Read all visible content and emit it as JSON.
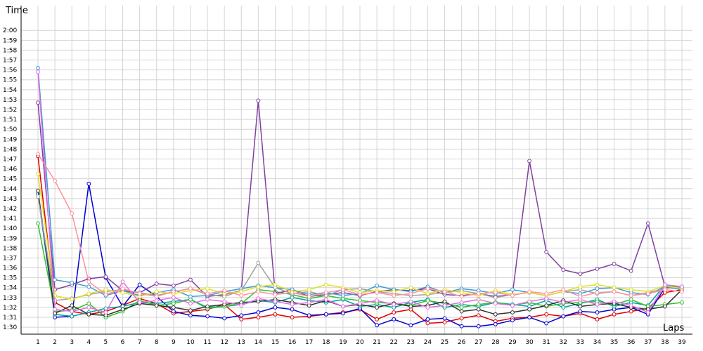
{
  "chart_data": {
    "type": "line",
    "title": "",
    "xlabel": "Laps",
    "ylabel": "Time",
    "x": [
      1,
      2,
      3,
      4,
      5,
      6,
      7,
      8,
      9,
      10,
      11,
      12,
      13,
      14,
      15,
      16,
      17,
      18,
      19,
      20,
      21,
      22,
      23,
      24,
      25,
      26,
      27,
      28,
      29,
      30,
      31,
      32,
      33,
      34,
      35,
      36,
      37,
      38,
      39
    ],
    "xlim": [
      1,
      39
    ],
    "ylim": [
      89.3,
      122.5
    ],
    "y_ticks": [
      {
        "v": 90,
        "label": "1:30"
      },
      {
        "v": 91,
        "label": "1:31"
      },
      {
        "v": 92,
        "label": "1:32"
      },
      {
        "v": 93,
        "label": "1:33"
      },
      {
        "v": 94,
        "label": "1:34"
      },
      {
        "v": 95,
        "label": "1:35"
      },
      {
        "v": 96,
        "label": "1:36"
      },
      {
        "v": 97,
        "label": "1:37"
      },
      {
        "v": 98,
        "label": "1:38"
      },
      {
        "v": 99,
        "label": "1:39"
      },
      {
        "v": 100,
        "label": "1:40"
      },
      {
        "v": 101,
        "label": "1:41"
      },
      {
        "v": 102,
        "label": "1:42"
      },
      {
        "v": 103,
        "label": "1:43"
      },
      {
        "v": 104,
        "label": "1:44"
      },
      {
        "v": 105,
        "label": "1:45"
      },
      {
        "v": 106,
        "label": "1:46"
      },
      {
        "v": 107,
        "label": "1:47"
      },
      {
        "v": 108,
        "label": "1:48"
      },
      {
        "v": 109,
        "label": "1:49"
      },
      {
        "v": 110,
        "label": "1:50"
      },
      {
        "v": 111,
        "label": "1:51"
      },
      {
        "v": 112,
        "label": "1:52"
      },
      {
        "v": 113,
        "label": "1:53"
      },
      {
        "v": 114,
        "label": "1:54"
      },
      {
        "v": 115,
        "label": "1:55"
      },
      {
        "v": 116,
        "label": "1:56"
      },
      {
        "v": 117,
        "label": "1:57"
      },
      {
        "v": 118,
        "label": "1:58"
      },
      {
        "v": 119,
        "label": "1:59"
      },
      {
        "v": 120,
        "label": "2:00"
      }
    ],
    "x_tick_labels": [
      "1",
      "2",
      "3",
      "4",
      "5",
      "6",
      "7",
      "8",
      "9",
      "10",
      "11",
      "12",
      "13",
      "14",
      "15",
      "16",
      "17",
      "18",
      "19",
      "20",
      "21",
      "22",
      "23",
      "24",
      "25",
      "26",
      "27",
      "28",
      "29",
      "30",
      "31",
      "32",
      "33",
      "34",
      "35",
      "36",
      "37",
      "38",
      "39"
    ],
    "grid": true,
    "legend": "none",
    "series": [
      {
        "color": "#e00000",
        "values": [
          107.3,
          92.5,
          91.6,
          91.3,
          91.6,
          92.2,
          92.9,
          92.4,
          91.4,
          91.6,
          91.8,
          92.3,
          90.8,
          91.0,
          91.3,
          91.0,
          91.1,
          91.3,
          91.5,
          91.8,
          90.8,
          91.5,
          91.8,
          90.4,
          90.5,
          90.9,
          91.2,
          90.6,
          90.9,
          91.0,
          91.3,
          91.1,
          91.4,
          90.8,
          91.3,
          91.6,
          91.9,
          93.5,
          93.8
        ]
      },
      {
        "color": "#0000d0",
        "values": [
          103.5,
          91.0,
          91.1,
          104.5,
          95.0,
          92.1,
          94.3,
          93.1,
          91.6,
          91.2,
          91.1,
          90.9,
          91.2,
          91.5,
          92.0,
          91.8,
          91.2,
          91.3,
          91.4,
          91.9,
          90.2,
          90.8,
          90.2,
          90.8,
          90.9,
          90.1,
          90.1,
          90.3,
          90.7,
          91.0,
          90.4,
          91.1,
          91.6,
          91.5,
          91.8,
          92.0,
          91.3,
          94.0,
          93.9
        ]
      },
      {
        "color": "#00a0a0",
        "values": [
          103.5,
          91.3,
          91.1,
          91.5,
          91.9,
          92.1,
          92.5,
          92.4,
          92.6,
          92.8,
          92.0,
          92.1,
          92.3,
          92.7,
          92.5,
          93.0,
          92.7,
          92.5,
          92.8,
          92.1,
          92.3,
          92.0,
          92.5,
          92.8,
          92.0,
          92.3,
          92.1,
          92.5,
          92.3,
          92.1,
          92.7,
          92.0,
          92.4,
          92.8,
          92.1,
          92.5,
          92.2,
          94.3,
          94.0
        ]
      },
      {
        "color": "#30c030",
        "values": [
          100.5,
          91.6,
          91.7,
          92.4,
          91.0,
          91.6,
          92.7,
          92.2,
          92.4,
          92.8,
          91.9,
          92.1,
          92.4,
          93.8,
          93.6,
          93.3,
          92.9,
          93.2,
          92.9,
          92.7,
          92.5,
          92.4,
          92.2,
          92.7,
          92.4,
          92.0,
          92.3,
          92.5,
          92.2,
          92.5,
          92.1,
          92.4,
          92.5,
          92.6,
          92.3,
          92.8,
          92.1,
          92.3,
          92.5
        ]
      },
      {
        "color": "#303030",
        "values": [
          103.8,
          91.4,
          92.2,
          91.3,
          91.2,
          91.8,
          92.4,
          92.2,
          92.0,
          91.7,
          92.1,
          92.3,
          92.5,
          92.6,
          92.8,
          92.5,
          92.2,
          92.7,
          92.1,
          92.3,
          92.0,
          92.4,
          92.1,
          92.2,
          92.6,
          91.6,
          91.8,
          91.3,
          91.5,
          91.8,
          92.2,
          92.7,
          92.1,
          92.3,
          92.4,
          92.0,
          91.8,
          92.1,
          93.8
        ]
      },
      {
        "color": "#8040a0",
        "values": [
          112.7,
          93.8,
          94.3,
          94.9,
          95.1,
          93.7,
          93.5,
          94.4,
          94.2,
          94.8,
          93.1,
          93.3,
          93.7,
          112.9,
          93.4,
          93.8,
          93.1,
          93.3,
          93.5,
          93.2,
          93.6,
          93.8,
          93.7,
          93.9,
          93.3,
          93.2,
          93.4,
          93.1,
          93.3,
          106.8,
          97.6,
          95.8,
          95.4,
          95.9,
          96.4,
          95.7,
          100.5,
          94.1,
          93.9
        ]
      },
      {
        "color": "#3a9ad9",
        "values": [
          116.2,
          94.8,
          94.5,
          94.1,
          93.2,
          93.7,
          93.2,
          93.5,
          93.8,
          93.1,
          93.2,
          93.6,
          93.9,
          94.2,
          94.0,
          93.8,
          93.3,
          93.5,
          93.2,
          93.4,
          94.2,
          93.8,
          93.6,
          94.1,
          93.5,
          93.9,
          93.7,
          93.4,
          93.8,
          93.5,
          93.2,
          93.6,
          93.4,
          93.9,
          94.0,
          93.5,
          93.3,
          94.1,
          93.8
        ]
      },
      {
        "color": "#a0a0a0",
        "values": [
          103.2,
          92.7,
          92.9,
          93.3,
          93.6,
          93.8,
          93.5,
          93.2,
          93.6,
          93.9,
          93.3,
          93.1,
          93.7,
          96.5,
          94.0,
          93.4,
          93.6,
          93.2,
          93.8,
          93.9,
          93.6,
          93.4,
          93.2,
          93.3,
          93.5,
          93.7,
          93.4,
          93.0,
          93.3,
          93.5,
          93.2,
          93.6,
          93.8,
          93.4,
          93.6,
          93.2,
          93.5,
          93.9,
          94.1
        ]
      },
      {
        "color": "#e0e020",
        "values": [
          105.5,
          93.2,
          92.8,
          93.4,
          93.8,
          93.5,
          93.1,
          93.6,
          93.4,
          93.7,
          93.9,
          93.4,
          93.6,
          94.1,
          94.3,
          93.6,
          93.8,
          94.3,
          94.0,
          93.5,
          93.7,
          93.6,
          94.0,
          93.4,
          93.8,
          93.5,
          93.2,
          93.7,
          93.3,
          93.5,
          93.2,
          93.6,
          94.1,
          94.3,
          94.0,
          93.8,
          93.6,
          94.2,
          93.9
        ]
      },
      {
        "color": "#e070e0",
        "values": [
          115.8,
          91.8,
          91.6,
          92.0,
          91.5,
          94.6,
          92.5,
          92.7,
          93.0,
          92.4,
          92.8,
          92.6,
          92.2,
          92.9,
          92.6,
          92.3,
          92.5,
          92.8,
          92.1,
          92.4,
          92.7,
          92.3,
          92.6,
          92.0,
          92.2,
          92.5,
          92.8,
          92.4,
          92.2,
          92.6,
          92.9,
          92.5,
          92.8,
          92.3,
          92.6,
          92.2,
          91.5,
          94.3,
          94.1
        ]
      },
      {
        "color": "#ff90a0",
        "values": [
          107.5,
          104.8,
          101.5,
          94.6,
          93.3,
          93.9,
          93.4,
          93.1,
          93.6,
          93.9,
          93.4,
          93.7,
          93.2,
          93.6,
          93.3,
          93.5,
          93.1,
          93.5,
          93.8,
          93.3,
          93.5,
          93.2,
          93.4,
          93.9,
          93.6,
          93.1,
          93.4,
          93.5,
          93.2,
          93.6,
          93.4,
          93.8,
          93.1,
          93.5,
          93.6,
          93.2,
          93.4,
          93.8,
          93.6
        ]
      }
    ]
  }
}
